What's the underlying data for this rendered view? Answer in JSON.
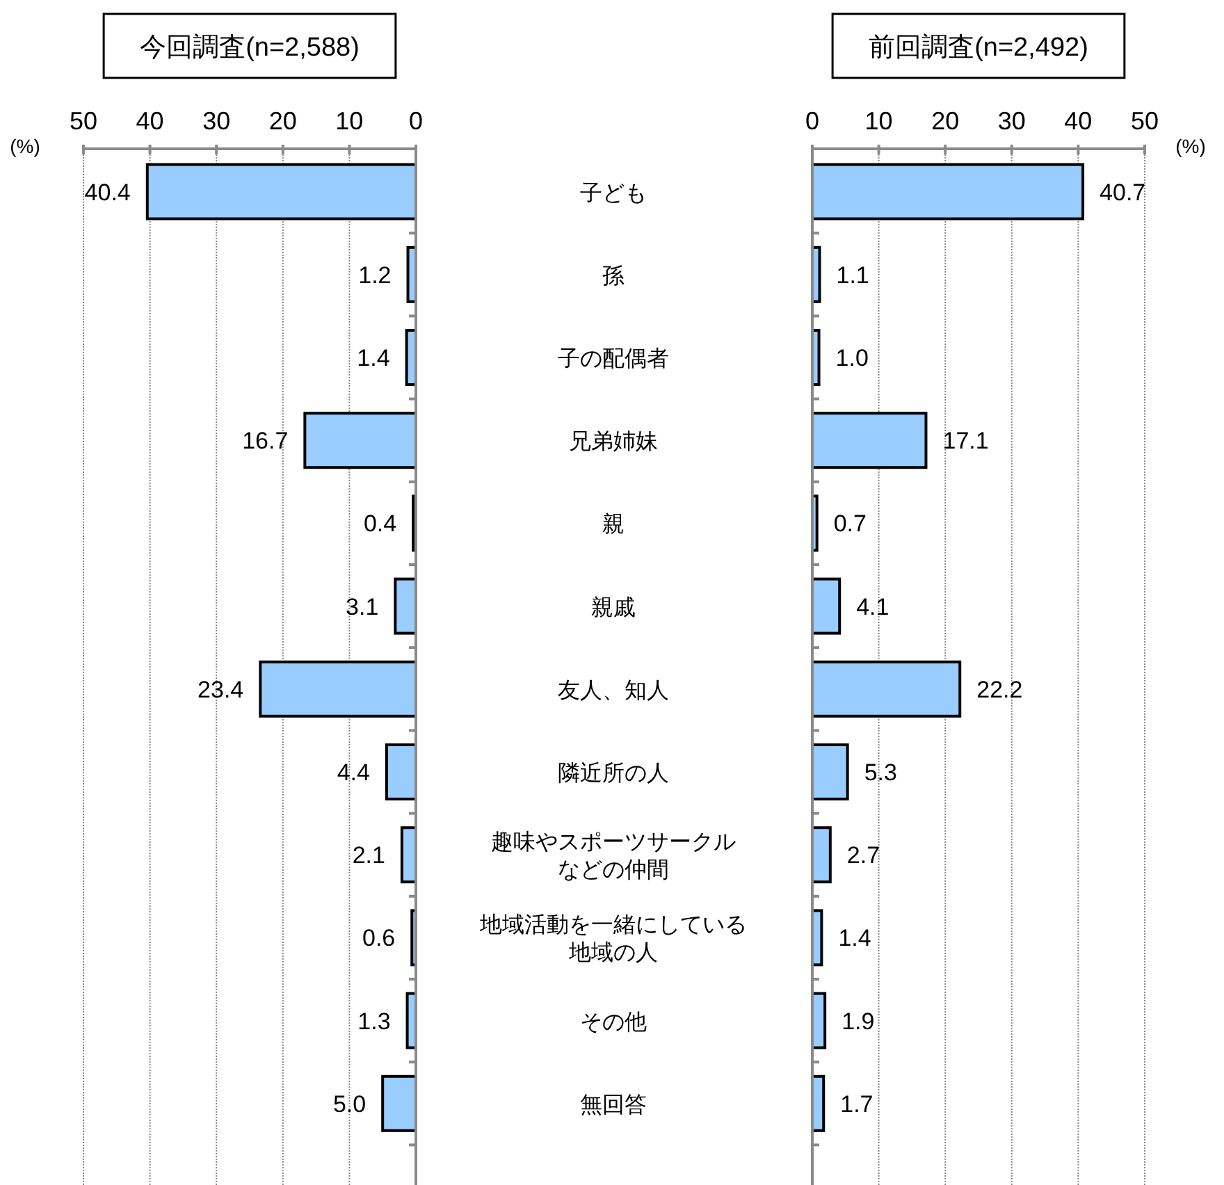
{
  "chart_data": [
    {
      "type": "bar",
      "orientation": "horizontal",
      "title": "今回調査(n=2,588)",
      "xlabel": "(%)",
      "categories": [
        "子ども",
        "孫",
        "子の配偶者",
        "兄弟姉妹",
        "親",
        "親戚",
        "友人、知人",
        "隣近所の人",
        "趣味やスポーツサークルなどの仲間",
        "地域活動を一緒にしている地域の人",
        "その他",
        "無回答"
      ],
      "values": [
        40.4,
        1.2,
        1.4,
        16.7,
        0.4,
        3.1,
        23.4,
        4.4,
        2.1,
        0.6,
        1.3,
        5.0
      ],
      "value_labels": [
        "40.4",
        "1.2",
        "1.4",
        "16.7",
        "0.4",
        "3.1",
        "23.4",
        "4.4",
        "2.1",
        "0.6",
        "1.3",
        "5.0"
      ],
      "color": "#99ccff",
      "xlim": [
        50,
        0
      ],
      "xticks": [
        0,
        10,
        20,
        30,
        40,
        50
      ],
      "grid": "x"
    },
    {
      "type": "bar",
      "orientation": "horizontal",
      "title": "前回調査(n=2,492)",
      "xlabel": "(%)",
      "categories": [
        "子ども",
        "孫",
        "子の配偶者",
        "兄弟姉妹",
        "親",
        "親戚",
        "友人、知人",
        "隣近所の人",
        "趣味やスポーツサークルなどの仲間",
        "地域活動を一緒にしている地域の人",
        "その他",
        "無回答"
      ],
      "values": [
        40.7,
        1.1,
        1.0,
        17.1,
        0.7,
        4.1,
        22.2,
        5.3,
        2.7,
        1.4,
        1.9,
        1.7
      ],
      "value_labels": [
        "40.7",
        "1.1",
        "1.0",
        "17.1",
        "0.7",
        "4.1",
        "22.2",
        "5.3",
        "2.7",
        "1.4",
        "1.9",
        "1.7"
      ],
      "color": "#99ccff",
      "xlim": [
        0,
        50
      ],
      "xticks": [
        0,
        10,
        20,
        30,
        40,
        50
      ],
      "grid": "x",
      "tick_labels": "x"
    }
  ]
}
